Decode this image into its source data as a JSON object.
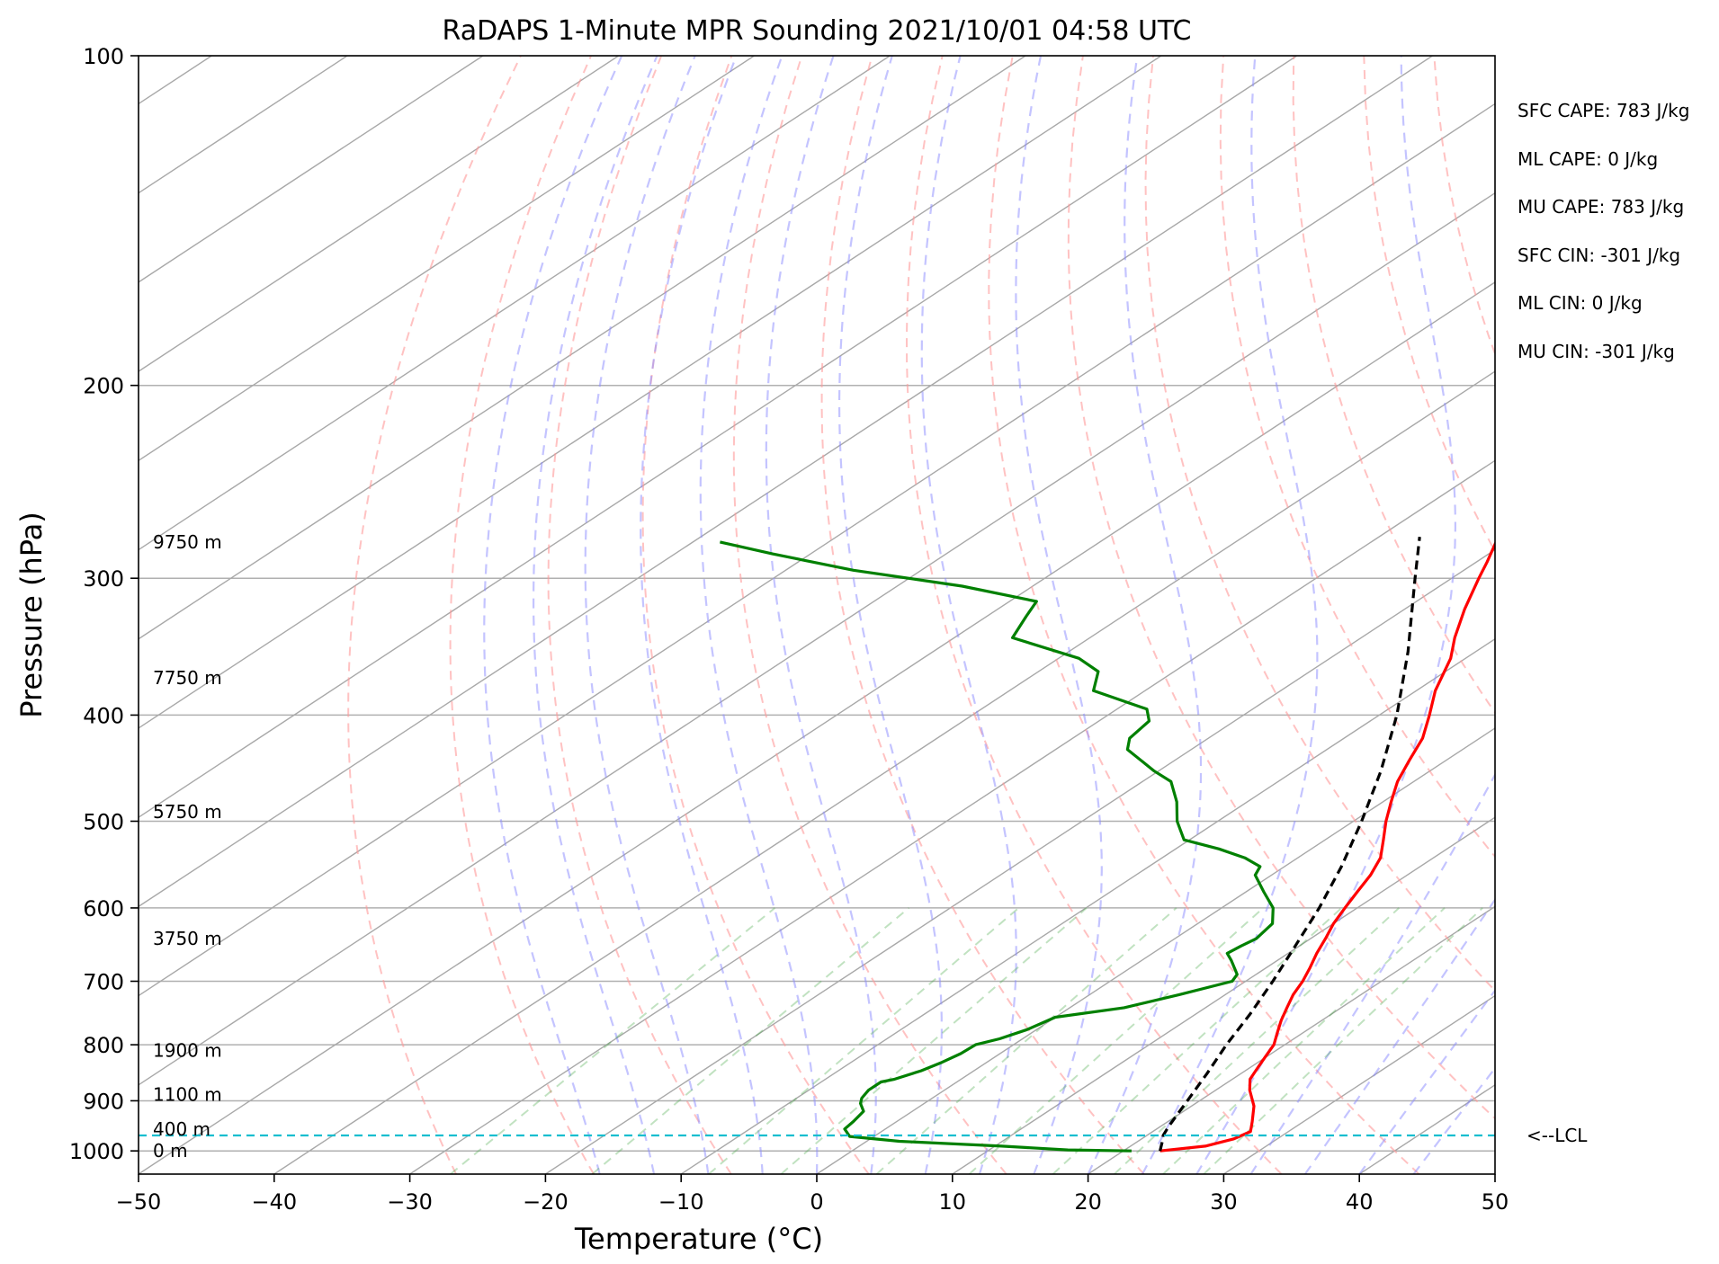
{
  "chart_data": {
    "type": "line",
    "subtype": "skew-t log-p diagram",
    "title": "RaDAPS 1-Minute MPR Sounding 2021/10/01 04:58 UTC",
    "xlabel": "Temperature (°C)",
    "ylabel": "Pressure (hPa)",
    "xlim": [
      -50,
      50
    ],
    "ylim": [
      1050,
      100
    ],
    "y_scale": "log",
    "skew": "isotherms slanted to the right with height",
    "grid": true,
    "x_ticks": [
      -50,
      -40,
      -30,
      -20,
      -10,
      0,
      10,
      20,
      30,
      40,
      50
    ],
    "x_tick_labels": [
      "−50",
      "−40",
      "−30",
      "−20",
      "−10",
      "0",
      "10",
      "20",
      "30",
      "40",
      "50"
    ],
    "y_ticks": [
      1000,
      900,
      800,
      700,
      600,
      500,
      400,
      300,
      200,
      100
    ],
    "y_tick_labels": [
      "1000",
      "900",
      "800",
      "700",
      "600",
      "500",
      "400",
      "300",
      "200",
      "100"
    ],
    "height_labels": [
      {
        "text": "0 m",
        "p": 1000
      },
      {
        "text": "400 m",
        "p": 955
      },
      {
        "text": "1100 m",
        "p": 888
      },
      {
        "text": "1900 m",
        "p": 810
      },
      {
        "text": "3750 m",
        "p": 640
      },
      {
        "text": "5750 m",
        "p": 490
      },
      {
        "text": "7750 m",
        "p": 370
      },
      {
        "text": "9750 m",
        "p": 278
      }
    ],
    "indices": [
      "SFC CAPE: 783 J/kg",
      "ML CAPE: 0 J/kg",
      "MU CAPE: 783 J/kg",
      "SFC CIN: -301 J/kg",
      "ML CIN: 0 J/kg",
      "MU CIN: -301 J/kg"
    ],
    "lcl": {
      "p": 968,
      "label": "<--LCL"
    },
    "background_lines": {
      "dry_adiabats": "dashed light red",
      "moist_adiabats": "dashed light blue",
      "mixing_ratio_lines": "dashed light green",
      "isotherms": "solid gray"
    },
    "series": [
      {
        "name": "",
        "role": "temperature",
        "color": "#ff0000",
        "points": [
          [
            1000,
            22.7
          ],
          [
            990,
            25.5
          ],
          [
            975,
            26.8
          ],
          [
            960,
            27.2
          ],
          [
            940,
            26.2
          ],
          [
            910,
            24.6
          ],
          [
            880,
            22.5
          ],
          [
            860,
            21.3
          ],
          [
            840,
            20.6
          ],
          [
            820,
            19.9
          ],
          [
            800,
            19.2
          ],
          [
            780,
            18.1
          ],
          [
            760,
            17.0
          ],
          [
            740,
            16.0
          ],
          [
            720,
            15.0
          ],
          [
            700,
            14.2
          ],
          [
            680,
            13.2
          ],
          [
            660,
            12.1
          ],
          [
            640,
            11.1
          ],
          [
            620,
            10.0
          ],
          [
            600,
            9.1
          ],
          [
            580,
            8.2
          ],
          [
            560,
            7.3
          ],
          [
            540,
            6.1
          ],
          [
            520,
            4.3
          ],
          [
            500,
            2.4
          ],
          [
            480,
            0.6
          ],
          [
            460,
            -1.2
          ],
          [
            440,
            -2.7
          ],
          [
            420,
            -4.2
          ],
          [
            400,
            -6.3
          ],
          [
            380,
            -8.6
          ],
          [
            355,
            -11.1
          ],
          [
            340,
            -13.1
          ],
          [
            320,
            -15.6
          ],
          [
            300,
            -18.0
          ],
          [
            290,
            -19.2
          ],
          [
            275,
            -21.2
          ]
        ]
      },
      {
        "name": "",
        "role": "dewpoint",
        "color": "#008000",
        "points": [
          [
            1000,
            20.6
          ],
          [
            998,
            15.8
          ],
          [
            990,
            10.5
          ],
          [
            980,
            2.4
          ],
          [
            970,
            -1.8
          ],
          [
            955,
            -3.0
          ],
          [
            940,
            -3.2
          ],
          [
            920,
            -3.6
          ],
          [
            905,
            -4.7
          ],
          [
            895,
            -5.2
          ],
          [
            880,
            -5.6
          ],
          [
            865,
            -5.6
          ],
          [
            860,
            -4.9
          ],
          [
            845,
            -3.9
          ],
          [
            830,
            -3.3
          ],
          [
            815,
            -2.9
          ],
          [
            800,
            -2.8
          ],
          [
            790,
            -1.7
          ],
          [
            775,
            -0.7
          ],
          [
            755,
            0.0
          ],
          [
            740,
            4.0
          ],
          [
            720,
            6.6
          ],
          [
            700,
            9.0
          ],
          [
            690,
            8.6
          ],
          [
            670,
            6.6
          ],
          [
            660,
            5.5
          ],
          [
            650,
            5.7
          ],
          [
            640,
            6.0
          ],
          [
            620,
            5.5
          ],
          [
            600,
            3.8
          ],
          [
            580,
            1.3
          ],
          [
            560,
            -1.2
          ],
          [
            550,
            -1.8
          ],
          [
            540,
            -3.9
          ],
          [
            530,
            -6.8
          ],
          [
            520,
            -10.4
          ],
          [
            500,
            -13.0
          ],
          [
            480,
            -15.2
          ],
          [
            460,
            -17.9
          ],
          [
            450,
            -20.3
          ],
          [
            430,
            -24.7
          ],
          [
            420,
            -25.8
          ],
          [
            405,
            -26.3
          ],
          [
            395,
            -27.8
          ],
          [
            380,
            -33.8
          ],
          [
            365,
            -35.6
          ],
          [
            355,
            -38.5
          ],
          [
            340,
            -45.7
          ],
          [
            325,
            -47.1
          ],
          [
            315,
            -48.0
          ],
          [
            305,
            -55.2
          ],
          [
            295,
            -65.0
          ],
          [
            285,
            -72.8
          ],
          [
            278,
            -78.0
          ]
        ]
      },
      {
        "name": "",
        "role": "parcel",
        "color": "#000000",
        "style": "dashed",
        "points": [
          [
            1000,
            22.7
          ],
          [
            980,
            21.8
          ],
          [
            968,
            21.2
          ],
          [
            950,
            20.6
          ],
          [
            900,
            19.1
          ],
          [
            850,
            17.5
          ],
          [
            800,
            15.7
          ],
          [
            750,
            14.0
          ],
          [
            700,
            12.0
          ],
          [
            650,
            9.7
          ],
          [
            600,
            7.2
          ],
          [
            550,
            4.2
          ],
          [
            500,
            0.6
          ],
          [
            450,
            -3.6
          ],
          [
            400,
            -8.7
          ],
          [
            350,
            -15.0
          ],
          [
            300,
            -22.7
          ],
          [
            275,
            -27.0
          ]
        ]
      }
    ]
  }
}
